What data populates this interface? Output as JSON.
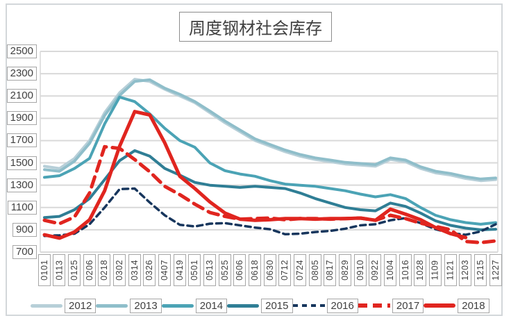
{
  "title": "周度钢材社会库存",
  "chart_data": {
    "type": "line",
    "title": "周度钢材社会库存",
    "xlabel": "",
    "ylabel": "",
    "ylim": [
      700,
      2500
    ],
    "yticks": [
      2500,
      2300,
      2100,
      1900,
      1700,
      1500,
      1300,
      1100,
      900,
      700
    ],
    "grid": "horizontal",
    "legend_position": "bottom",
    "categories": [
      "0101",
      "0113",
      "0125",
      "0206",
      "0218",
      "0302",
      "0314",
      "0326",
      "0407",
      "0419",
      "0501",
      "0513",
      "0525",
      "0606",
      "0618",
      "0630",
      "0712",
      "0724",
      "0805",
      "0817",
      "0829",
      "0910",
      "0922",
      "1004",
      "1016",
      "1028",
      "1109",
      "1121",
      "1203",
      "1215",
      "1227"
    ],
    "series": [
      {
        "name": "2012",
        "color": "#b7cfd8",
        "style": "solid",
        "width": 4,
        "values": [
          1470,
          1450,
          1540,
          1700,
          1950,
          2130,
          2250,
          2230,
          2160,
          2100,
          2040,
          1950,
          1860,
          1780,
          1700,
          1650,
          1600,
          1560,
          1530,
          1510,
          1490,
          1480,
          1470,
          1530,
          1510,
          1450,
          1410,
          1390,
          1360,
          1340,
          1350
        ]
      },
      {
        "name": "2013",
        "color": "#8fbeca",
        "style": "solid",
        "width": 4,
        "values": [
          1440,
          1425,
          1515,
          1675,
          1925,
          2105,
          2230,
          2245,
          2170,
          2115,
          2050,
          1965,
          1875,
          1795,
          1715,
          1665,
          1615,
          1575,
          1545,
          1525,
          1505,
          1495,
          1485,
          1545,
          1525,
          1465,
          1425,
          1405,
          1375,
          1355,
          1365
        ]
      },
      {
        "name": "2014",
        "color": "#4ba3b5",
        "style": "solid",
        "width": 4,
        "values": [
          1370,
          1385,
          1450,
          1540,
          1850,
          2090,
          2050,
          1940,
          1810,
          1700,
          1640,
          1500,
          1430,
          1400,
          1380,
          1340,
          1310,
          1300,
          1290,
          1270,
          1250,
          1220,
          1195,
          1215,
          1180,
          1100,
          1030,
          990,
          965,
          950,
          965
        ]
      },
      {
        "name": "2015",
        "color": "#2f7e95",
        "style": "solid",
        "width": 4,
        "values": [
          1010,
          1020,
          1080,
          1180,
          1350,
          1520,
          1610,
          1560,
          1450,
          1390,
          1325,
          1300,
          1290,
          1280,
          1290,
          1280,
          1270,
          1230,
          1180,
          1140,
          1100,
          1080,
          1070,
          1140,
          1110,
          1050,
          980,
          940,
          915,
          900,
          905
        ]
      },
      {
        "name": "2016",
        "color": "#17365d",
        "style": "dashed-small",
        "width": 3.5,
        "values": [
          845,
          850,
          865,
          950,
          1100,
          1265,
          1270,
          1145,
          1030,
          945,
          930,
          955,
          960,
          940,
          920,
          905,
          860,
          865,
          880,
          890,
          910,
          940,
          950,
          985,
          1005,
          960,
          905,
          870,
          855,
          885,
          950
        ]
      },
      {
        "name": "2017",
        "color": "#e0251f",
        "style": "dashed",
        "width": 5,
        "values": [
          985,
          955,
          1015,
          1230,
          1645,
          1630,
          1530,
          1420,
          1290,
          1215,
          1130,
          1055,
          1020,
          995,
          1000,
          1005,
          990,
          1000,
          1000,
          995,
          1000,
          1005,
          985,
          1030,
          1000,
          960,
          930,
          900,
          795,
          785,
          800
        ]
      },
      {
        "name": "2018",
        "color": "#e0251f",
        "style": "solid",
        "width": 5,
        "values": [
          855,
          825,
          880,
          990,
          1250,
          1650,
          1960,
          1930,
          1680,
          1380,
          1270,
          1150,
          1050,
          995,
          985,
          990,
          1000,
          1000,
          995,
          1000,
          1000,
          1005,
          985,
          1085,
          1040,
          990,
          920,
          865,
          830,
          null,
          null
        ]
      }
    ],
    "colors": {
      "grid": "#d9d9d9",
      "tick_box_border": "#a6a6a6",
      "text": "#3f3f3f",
      "red": "#e0251f",
      "navy": "#17365d"
    }
  }
}
